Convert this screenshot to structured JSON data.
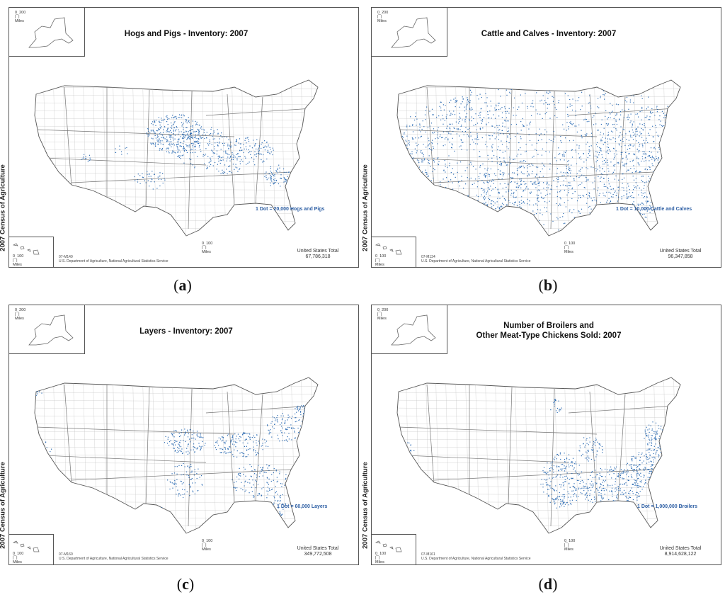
{
  "page_label": "2007 Census of Agriculture",
  "colors": {
    "dot": "#2e6db4",
    "border": "#777777",
    "legend": "#2b5da3"
  },
  "panels": [
    {
      "title_lines": [
        "Hogs and Pigs - Inventory:  2007"
      ],
      "legend": "1 Dot = 20,000 Hogs and Pigs",
      "total_label": "United States Total",
      "total_value": "67,786,318",
      "map_id": "07-M149",
      "credit": "U.S. Department of Agriculture, National Agricultural Statistics Service",
      "caption": "a",
      "clusters": [
        [
          215,
          95,
          40,
          28,
          320
        ],
        [
          255,
          115,
          40,
          30,
          160
        ],
        [
          320,
          120,
          35,
          20,
          120
        ],
        [
          360,
          155,
          18,
          16,
          70
        ],
        [
          180,
          160,
          25,
          14,
          40
        ],
        [
          90,
          130,
          8,
          6,
          12
        ],
        [
          290,
          140,
          20,
          14,
          40
        ],
        [
          140,
          120,
          10,
          8,
          10
        ]
      ]
    },
    {
      "title_lines": [
        "Cattle and Calves - Inventory:  2007"
      ],
      "legend": "1 Dot = 10,000 Cattle and Calves",
      "total_label": "United States Total",
      "total_value": "96,347,858",
      "map_id": "07-M134",
      "credit": "U.S. Department of Agriculture, National Agricultural Statistics Service",
      "caption": "b",
      "clusters": [
        [
          230,
          130,
          230,
          110,
          1400
        ],
        [
          180,
          180,
          55,
          50,
          240
        ],
        [
          40,
          140,
          30,
          60,
          120
        ],
        [
          320,
          160,
          90,
          60,
          300
        ],
        [
          370,
          95,
          70,
          40,
          150
        ],
        [
          120,
          80,
          60,
          40,
          120
        ]
      ]
    },
    {
      "title_lines": [
        "Layers - Inventory:  2007"
      ],
      "legend": "1 Dot = 60,000 Layers",
      "total_label": "United States Total",
      "total_value": "349,772,508",
      "map_id": "07-M160",
      "credit": "U.S. Department of Agriculture, National Agricultural Statistics Service",
      "caption": "c",
      "clusters": [
        [
          230,
          110,
          30,
          18,
          120
        ],
        [
          310,
          115,
          40,
          18,
          140
        ],
        [
          370,
          90,
          25,
          20,
          90
        ],
        [
          335,
          165,
          40,
          25,
          120
        ],
        [
          230,
          165,
          25,
          25,
          80
        ],
        [
          395,
          70,
          12,
          12,
          40
        ],
        [
          30,
          130,
          14,
          20,
          40
        ],
        [
          190,
          210,
          14,
          10,
          30
        ],
        [
          360,
          200,
          12,
          20,
          40
        ],
        [
          20,
          40,
          10,
          10,
          20
        ]
      ]
    },
    {
      "title_lines": [
        "Number of Broilers and",
        "Other Meat-Type Chickens Sold:  2007"
      ],
      "legend": "1 Dot = 1,000,000 Broilers",
      "total_label": "United States Total",
      "total_value": "8,914,628,122",
      "map_id": "07-M161",
      "credit": "U.S. Department of Agriculture, National Agricultural Statistics Service",
      "caption": "d",
      "clusters": [
        [
          250,
          165,
          30,
          40,
          220
        ],
        [
          320,
          175,
          45,
          30,
          260
        ],
        [
          380,
          110,
          15,
          30,
          120
        ],
        [
          360,
          150,
          20,
          25,
          120
        ],
        [
          290,
          120,
          18,
          18,
          60
        ],
        [
          30,
          130,
          12,
          20,
          40
        ],
        [
          240,
          60,
          10,
          10,
          20
        ],
        [
          330,
          210,
          20,
          14,
          50
        ]
      ]
    }
  ]
}
